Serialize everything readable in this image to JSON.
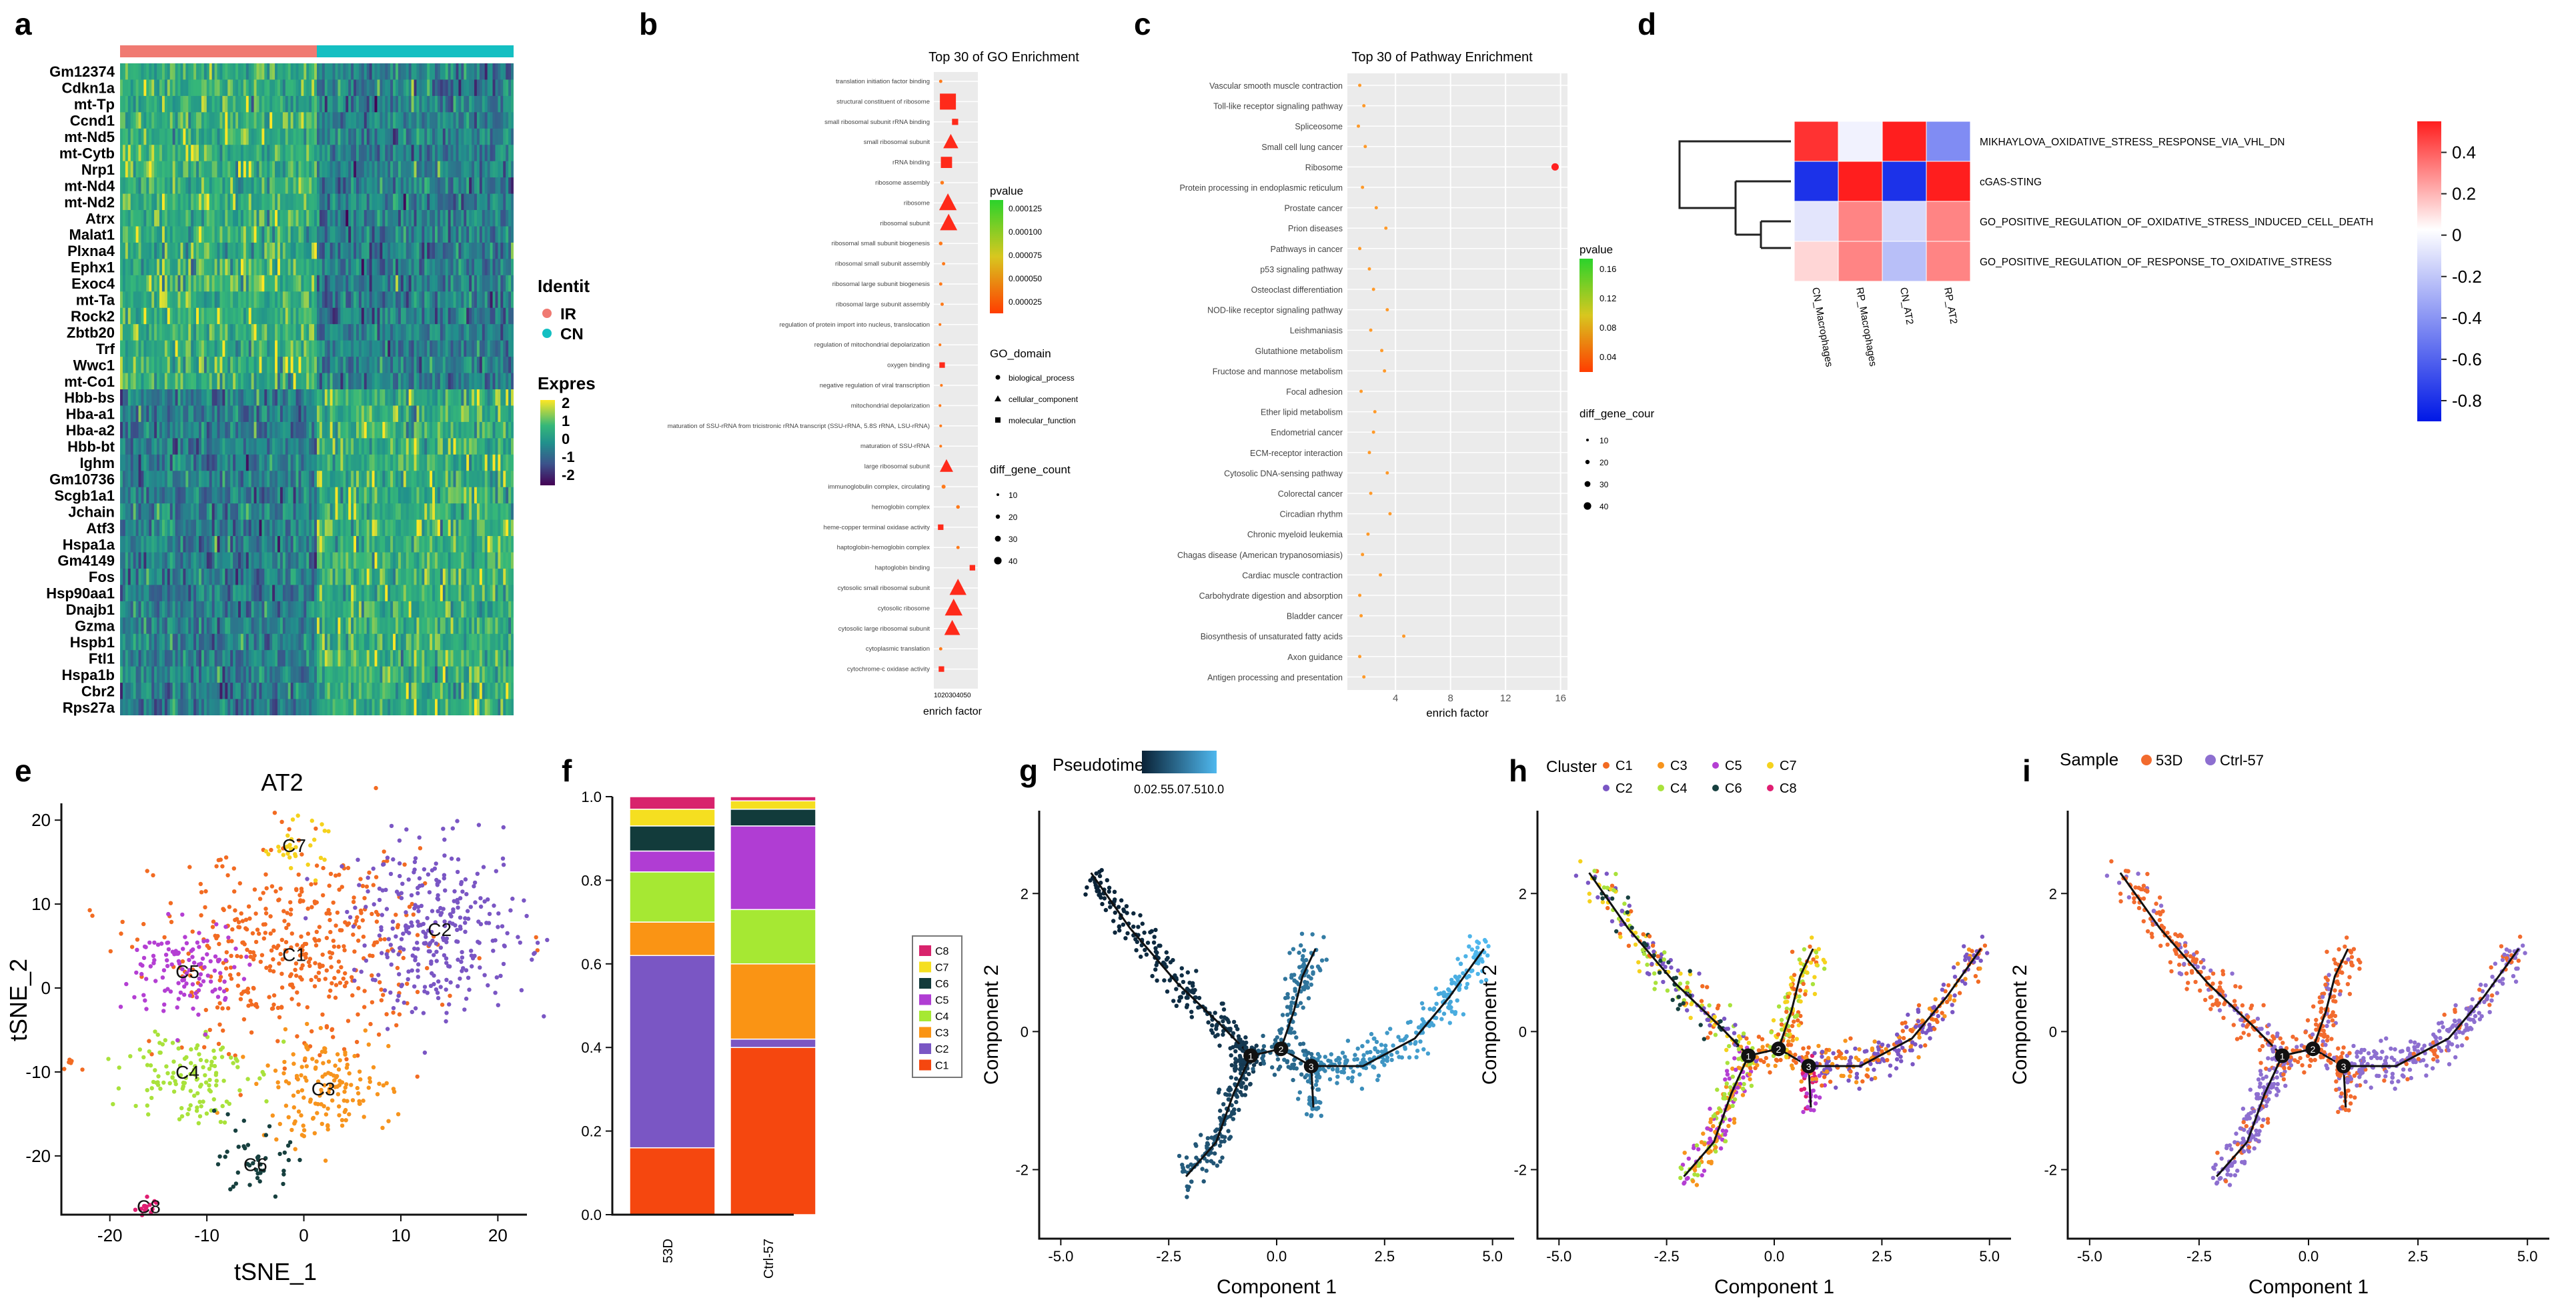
{
  "chart_data": [
    {
      "panel": "a",
      "type": "heatmap",
      "genes": [
        "Gm12374",
        "Cdkn1a",
        "mt-Tp",
        "Ccnd1",
        "mt-Nd5",
        "mt-Cytb",
        "Nrp1",
        "mt-Nd4",
        "mt-Nd2",
        "Atrx",
        "Malat1",
        "Plxna4",
        "Ephx1",
        "Exoc4",
        "mt-Ta",
        "Rock2",
        "Zbtb20",
        "Trf",
        "Wwc1",
        "mt-Co1",
        "Hbb-bs",
        "Hba-a1",
        "Hba-a2",
        "Hbb-bt",
        "Ighm",
        "Gm10736",
        "Scgb1a1",
        "Jchain",
        "Atf3",
        "Hspa1a",
        "Gm4149",
        "Fos",
        "Hsp90aa1",
        "Dnajb1",
        "Gzma",
        "Hspb1",
        "Ftl1",
        "Hspa1b",
        "Cbr2",
        "Rps27a"
      ],
      "identity_title": "Identit",
      "identity": [
        {
          "name": "IR",
          "color": "#f07a72"
        },
        {
          "name": "CN",
          "color": "#14bfc2"
        }
      ],
      "expr_title": "Expres",
      "expr_ticks": [
        "2",
        "1",
        "0",
        "-1",
        "-2"
      ]
    },
    {
      "panel": "b",
      "type": "scatter",
      "title": "Top 30 of GO Enrichment",
      "xlabel": "enrich factor",
      "x_tick_text": "1020304050",
      "terms": [
        {
          "t": "translation initiation factor binding",
          "x": 4,
          "c": 2,
          "s": "circle"
        },
        {
          "t": "structural constituent of ribosome",
          "x": 14,
          "c": 44,
          "s": "square"
        },
        {
          "t": "small ribosomal subunit rRNA binding",
          "x": 24,
          "c": 3,
          "s": "square"
        },
        {
          "t": "small ribosomal subunit",
          "x": 18,
          "c": 30,
          "s": "triangle"
        },
        {
          "t": "rRNA binding",
          "x": 12,
          "c": 18,
          "s": "square"
        },
        {
          "t": "ribosome assembly",
          "x": 6,
          "c": 3,
          "s": "circle"
        },
        {
          "t": "ribosome",
          "x": 14,
          "c": 44,
          "s": "triangle"
        },
        {
          "t": "ribosomal subunit",
          "x": 15,
          "c": 42,
          "s": "triangle"
        },
        {
          "t": "ribosomal small subunit biogenesis",
          "x": 4,
          "c": 3,
          "s": "circle"
        },
        {
          "t": "ribosomal small subunit assembly",
          "x": 8,
          "c": 2,
          "s": "circle"
        },
        {
          "t": "ribosomal large subunit biogenesis",
          "x": 4,
          "c": 2,
          "s": "circle"
        },
        {
          "t": "ribosomal large subunit assembly",
          "x": 6,
          "c": 2,
          "s": "circle"
        },
        {
          "t": "regulation of protein import into nucleus, translocation",
          "x": 3,
          "c": 1,
          "s": "circle"
        },
        {
          "t": "regulation of mitochondrial depolarization",
          "x": 3,
          "c": 1,
          "s": "circle"
        },
        {
          "t": "oxygen binding",
          "x": 6,
          "c": 2,
          "s": "square"
        },
        {
          "t": "negative regulation of viral transcription",
          "x": 5,
          "c": 1,
          "s": "circle"
        },
        {
          "t": "mitochondrial depolarization",
          "x": 3,
          "c": 1,
          "s": "circle"
        },
        {
          "t": "maturation of SSU-rRNA from tricistronic rRNA transcript (SSU-rRNA, 5.8S rRNA, LSU-rRNA)",
          "x": 4,
          "c": 1,
          "s": "circle"
        },
        {
          "t": "maturation of SSU-rRNA",
          "x": 4,
          "c": 1,
          "s": "circle"
        },
        {
          "t": "large ribosomal subunit",
          "x": 12,
          "c": 22,
          "s": "triangle"
        },
        {
          "t": "immunoglobulin complex, circulating",
          "x": 8,
          "c": 4,
          "s": "circle"
        },
        {
          "t": "hemoglobin complex",
          "x": 28,
          "c": 3,
          "s": "circle"
        },
        {
          "t": "heme-copper terminal oxidase activity",
          "x": 4,
          "c": 2,
          "s": "square"
        },
        {
          "t": "haptoglobin-hemoglobin complex",
          "x": 28,
          "c": 2,
          "s": "circle"
        },
        {
          "t": "haptoglobin binding",
          "x": 48,
          "c": 2,
          "s": "square"
        },
        {
          "t": "cytosolic small ribosomal subunit",
          "x": 28,
          "c": 40,
          "s": "triangle"
        },
        {
          "t": "cytosolic ribosome",
          "x": 22,
          "c": 44,
          "s": "triangle"
        },
        {
          "t": "cytosolic large ribosomal subunit",
          "x": 20,
          "c": 34,
          "s": "triangle"
        },
        {
          "t": "cytoplasmic translation",
          "x": 4,
          "c": 2,
          "s": "circle"
        },
        {
          "t": "cytochrome-c oxidase activity",
          "x": 5,
          "c": 2,
          "s": "square"
        }
      ],
      "legend": {
        "pvalue_title": "pvalue",
        "pvalue_ticks": [
          "0.000125",
          "0.000100",
          "0.000075",
          "0.000050",
          "0.000025"
        ],
        "domain_title": "GO_domain",
        "domains": [
          "biological_process",
          "cellular_component",
          "molecular_function"
        ],
        "count_title": "diff_gene_count",
        "counts": [
          "10",
          "20",
          "30",
          "40"
        ]
      }
    },
    {
      "panel": "c",
      "type": "scatter",
      "title": "Top 30 of Pathway Enrichment",
      "xlabel": "enrich factor",
      "xlim": [
        0.5,
        16.5
      ],
      "x_ticks": [
        4,
        8,
        12,
        16
      ],
      "terms": [
        {
          "t": "Vascular smooth muscle contraction",
          "x": 1.4
        },
        {
          "t": "Toll-like receptor signaling pathway",
          "x": 1.7
        },
        {
          "t": "Spliceosome",
          "x": 1.3
        },
        {
          "t": "Small cell lung cancer",
          "x": 1.8
        },
        {
          "t": "Ribosome",
          "x": 15.6
        },
        {
          "t": "Protein processing in endoplasmic reticulum",
          "x": 1.6
        },
        {
          "t": "Prostate cancer",
          "x": 2.6
        },
        {
          "t": "Prion diseases",
          "x": 3.3
        },
        {
          "t": "Pathways in cancer",
          "x": 1.4
        },
        {
          "t": "p53 signaling pathway",
          "x": 2.1
        },
        {
          "t": "Osteoclast differentiation",
          "x": 2.4
        },
        {
          "t": "NOD-like receptor signaling pathway",
          "x": 3.4
        },
        {
          "t": "Leishmaniasis",
          "x": 2.2
        },
        {
          "t": "Glutathione metabolism",
          "x": 3.0
        },
        {
          "t": "Fructose and mannose metabolism",
          "x": 3.2
        },
        {
          "t": "Focal adhesion",
          "x": 1.5
        },
        {
          "t": "Ether lipid metabolism",
          "x": 2.5
        },
        {
          "t": "Endometrial cancer",
          "x": 2.4
        },
        {
          "t": "ECM-receptor interaction",
          "x": 2.1
        },
        {
          "t": "Cytosolic DNA-sensing pathway",
          "x": 3.4
        },
        {
          "t": "Colorectal cancer",
          "x": 2.2
        },
        {
          "t": "Circadian rhythm",
          "x": 3.6
        },
        {
          "t": "Chronic myeloid leukemia",
          "x": 2.0
        },
        {
          "t": "Chagas disease (American trypanosomiasis)",
          "x": 1.6
        },
        {
          "t": "Cardiac muscle contraction",
          "x": 2.9
        },
        {
          "t": "Carbohydrate digestion and absorption",
          "x": 1.4
        },
        {
          "t": "Bladder cancer",
          "x": 1.5
        },
        {
          "t": "Biosynthesis of unsaturated fatty acids",
          "x": 4.6
        },
        {
          "t": "Axon guidance",
          "x": 1.4
        },
        {
          "t": "Antigen processing and presentation",
          "x": 1.7
        }
      ],
      "legend": {
        "pvalue_title": "pvalue",
        "pvalue_ticks": [
          "0.16",
          "0.12",
          "0.08",
          "0.04"
        ],
        "count_title": "diff_gene_cour",
        "counts": [
          "10",
          "20",
          "30",
          "40"
        ]
      }
    },
    {
      "panel": "d",
      "type": "heatmap",
      "rows": [
        "MIKHAYLOVA_OXIDATIVE_STRESS_RESPONSE_VIA_VHL_DN",
        "cGAS-STING",
        "GO_POSITIVE_REGULATION_OF_OXIDATIVE_STRESS_INDUCED_CELL_DEATH",
        "GO_POSITIVE_REGULATION_OF_RESPONSE_TO_OXIDATIVE_STRESS"
      ],
      "columns": [
        "CN_Macrophages",
        "RP_Macrophages",
        "CN_AT2",
        "RP_AT2"
      ],
      "values": [
        [
          0.5,
          -0.05,
          0.55,
          -0.45
        ],
        [
          -0.8,
          0.55,
          -0.8,
          0.55
        ],
        [
          -0.1,
          0.3,
          -0.15,
          0.3
        ],
        [
          0.1,
          0.3,
          -0.25,
          0.3
        ]
      ],
      "scale_ticks": [
        "0.4",
        "0.2",
        "0",
        "-0.2",
        "-0.4",
        "-0.6",
        "-0.8"
      ],
      "vmin": -0.9,
      "vmax": 0.55
    },
    {
      "panel": "e",
      "type": "scatter",
      "title": "AT2",
      "xlabel": "tSNE_1",
      "ylabel": "tSNE_2",
      "xlim": [
        -25,
        23
      ],
      "ylim": [
        -27,
        22
      ],
      "x_ticks": [
        -20,
        -10,
        0,
        10,
        20
      ],
      "y_ticks": [
        -20,
        -10,
        0,
        10,
        20
      ],
      "clusters": [
        {
          "name": "C1",
          "cx": -1,
          "cy": 4,
          "sx": 7,
          "sy": 6,
          "n": 430,
          "color": "#f26b22"
        },
        {
          "name": "C2",
          "cx": 14,
          "cy": 7,
          "sx": 4.5,
          "sy": 5,
          "n": 300,
          "color": "#7a56c4"
        },
        {
          "name": "C3",
          "cx": 2,
          "cy": -12,
          "sx": 3.5,
          "sy": 3,
          "n": 150,
          "color": "#f7941d"
        },
        {
          "name": "C4",
          "cx": -12,
          "cy": -10,
          "sx": 3,
          "sy": 3,
          "n": 130,
          "color": "#a9e23b"
        },
        {
          "name": "C5",
          "cx": -12,
          "cy": 2,
          "sx": 3,
          "sy": 3,
          "n": 120,
          "color": "#b43fd3"
        },
        {
          "name": "C6",
          "cx": -5,
          "cy": -21,
          "sx": 1.8,
          "sy": 2,
          "n": 45,
          "color": "#17403f"
        },
        {
          "name": "C7",
          "cx": -1,
          "cy": 17,
          "sx": 1.5,
          "sy": 1.5,
          "n": 30,
          "color": "#f5d21d"
        },
        {
          "name": "C8",
          "cx": -16,
          "cy": -26,
          "sx": 0.8,
          "sy": 0.5,
          "n": 14,
          "color": "#e01e72"
        }
      ]
    },
    {
      "panel": "f",
      "type": "bar",
      "stacked": true,
      "categories": [
        "53D",
        "Ctrl-57"
      ],
      "ylim": [
        0,
        1.0
      ],
      "y_ticks": [
        "0.0",
        "0.2",
        "0.4",
        "0.6",
        "0.8",
        "1.0"
      ],
      "series": [
        {
          "name": "C1",
          "color": "#f5470f",
          "values": [
            0.16,
            0.4
          ]
        },
        {
          "name": "C2",
          "color": "#7a56c4",
          "values": [
            0.46,
            0.02
          ]
        },
        {
          "name": "C3",
          "color": "#fa9414",
          "values": [
            0.08,
            0.18
          ]
        },
        {
          "name": "C4",
          "color": "#a6e833",
          "values": [
            0.12,
            0.13
          ]
        },
        {
          "name": "C5",
          "color": "#b03dd3",
          "values": [
            0.05,
            0.2
          ]
        },
        {
          "name": "C6",
          "color": "#123b3b",
          "values": [
            0.06,
            0.04
          ]
        },
        {
          "name": "C7",
          "color": "#f5df20",
          "values": [
            0.04,
            0.02
          ]
        },
        {
          "name": "C8",
          "color": "#d8236c",
          "values": [
            0.03,
            0.01
          ]
        }
      ]
    },
    {
      "panel": "g",
      "type": "scatter",
      "xlabel": "Component 1",
      "ylabel": "Component 2",
      "xlim": [
        -5.5,
        5.5
      ],
      "ylim": [
        -3,
        3.2
      ],
      "x_ticks": [
        "-5.0",
        "-2.5",
        "0.0",
        "2.5",
        "5.0"
      ],
      "y_ticks": [
        2,
        0,
        -2
      ],
      "legend_title": "Pseudotime",
      "legend_ticks": "0.02.55.07.510.0"
    },
    {
      "panel": "h",
      "type": "scatter",
      "xlabel": "Component 1",
      "ylabel": "Component 2",
      "legend_title": "Cluster",
      "legend": [
        "C1",
        "C2",
        "C3",
        "C4",
        "C5",
        "C6",
        "C7",
        "C8"
      ]
    },
    {
      "panel": "i",
      "type": "scatter",
      "xlabel": "Component 1",
      "ylabel": "Component 2",
      "legend_title": "Sample",
      "legend": [
        {
          "name": "53D",
          "color": "#f26b2e"
        },
        {
          "name": "Ctrl-57",
          "color": "#8d6fd0"
        }
      ]
    }
  ],
  "panel_labels": [
    "a",
    "b",
    "c",
    "d",
    "e",
    "f",
    "g",
    "h",
    "i"
  ],
  "branch_points": [
    "1",
    "2",
    "3"
  ]
}
